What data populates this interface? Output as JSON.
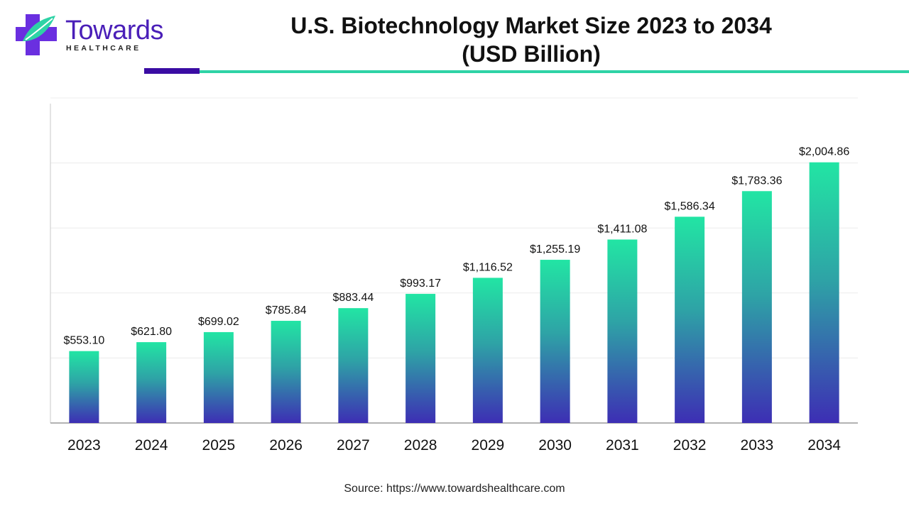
{
  "brand": {
    "logo_word": "Towards",
    "logo_sub": "HEALTHCARE",
    "colors": {
      "primary": "#4a1fb8",
      "accent": "#2ed3a6",
      "dark_bar": "#3a0ca3"
    }
  },
  "source_text": "Source: https://www.towardshealthcare.com",
  "chart_data": {
    "type": "bar",
    "title_line1": "U.S. Biotechnology Market Size 2023 to 2034",
    "title_line2": "(USD Billion)",
    "categories": [
      "2023",
      "2024",
      "2025",
      "2026",
      "2027",
      "2028",
      "2029",
      "2030",
      "2031",
      "2032",
      "2033",
      "2034"
    ],
    "values": [
      553.1,
      621.8,
      699.02,
      785.84,
      883.44,
      993.17,
      1116.52,
      1255.19,
      1411.08,
      1586.34,
      1783.36,
      2004.86
    ],
    "value_labels": [
      "$553.10",
      "$621.80",
      "$699.02",
      "$785.84",
      "$883.44",
      "$993.17",
      "$1,116.52",
      "$1,255.19",
      "$1,411.08",
      "$1,586.34",
      "$1,783.36",
      "$2,004.86"
    ],
    "ylim": [
      0,
      2500
    ],
    "grid": true,
    "legend": "none",
    "bar_gradient": {
      "top": "#22e5a4",
      "middle": "#2ea3a6",
      "bottom": "#3d2eb4"
    }
  }
}
